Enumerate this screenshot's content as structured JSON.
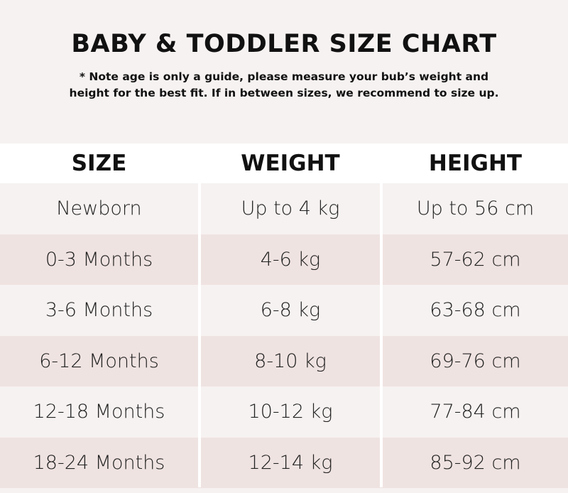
{
  "title": "BABY & TODDLER SIZE CHART",
  "note_line1": "* Note age is only a guide, please measure your bub’s weight and",
  "note_line2": "height for the best fit. If in between sizes, we recommend to size up.",
  "colors": {
    "background": "#f6f2f1",
    "row_alt": "#efe3e1",
    "header": "#ffffff"
  },
  "columns": [
    "SIZE",
    "WEIGHT",
    "HEIGHT"
  ],
  "rows": [
    [
      "Newborn",
      "Up to 4 kg",
      "Up to 56 cm"
    ],
    [
      "0-3 Months",
      "4-6 kg",
      "57-62 cm"
    ],
    [
      "3-6 Months",
      "6-8 kg",
      "63-68 cm"
    ],
    [
      "6-12 Months",
      "8-10 kg",
      "69-76 cm"
    ],
    [
      "12-18 Months",
      "10-12 kg",
      "77-84 cm"
    ],
    [
      "18-24 Months",
      "12-14 kg",
      "85-92 cm"
    ]
  ]
}
